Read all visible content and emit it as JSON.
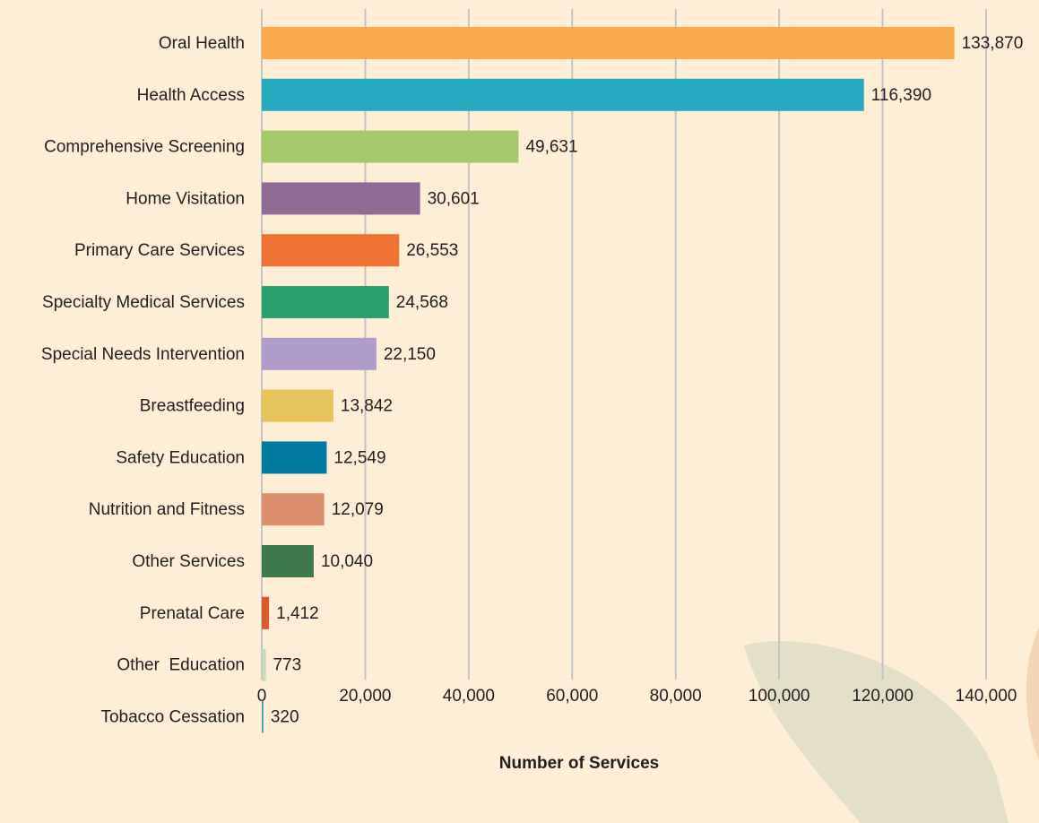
{
  "chart_data": {
    "type": "bar",
    "orientation": "horizontal",
    "x_label": "Number of Services",
    "categories": [
      "Oral Health",
      "Health Access",
      "Comprehensive Screening",
      "Home Visitation",
      "Primary Care Services",
      "Specialty Medical Services",
      "Special Needs Intervention",
      "Breastfeeding",
      "Safety Education",
      "Nutrition and Fitness",
      "Other Services",
      "Prenatal Care",
      "Other  Education",
      "Tobacco Cessation"
    ],
    "values": [
      133870,
      116390,
      49631,
      30601,
      26553,
      24568,
      22150,
      13842,
      12549,
      12079,
      10040,
      1412,
      773,
      320
    ],
    "value_labels": [
      "133,870",
      "116,390",
      "49,631",
      "30,601",
      "26,553",
      "24,568",
      "22,150",
      "13,842",
      "12,549",
      "12,079",
      "10,040",
      "1,412",
      "773",
      "320"
    ],
    "colors": [
      "#f9ab4b",
      "#25a9bf",
      "#a5c96c",
      "#916a96",
      "#f07232",
      "#2b9f6e",
      "#b09ccb",
      "#e8c35c",
      "#007aa0",
      "#dc8f6a",
      "#3c7a4b",
      "#d95a2a",
      "#c6dbb9",
      "#3c9fb0"
    ],
    "xlim": [
      0,
      140000
    ],
    "xticks": [
      0,
      {
        "value": 20000,
        "label": "20,000"
      },
      {
        "value": 40000,
        "label": "40,000"
      },
      {
        "value": 60000,
        "label": "60,000"
      },
      {
        "value": 80000,
        "label": "80,000"
      },
      {
        "value": 100000,
        "label": "100,000"
      },
      {
        "value": 120000,
        "label": "120,000"
      },
      {
        "value": 140000,
        "label": "140,000"
      }
    ],
    "grid": true
  }
}
